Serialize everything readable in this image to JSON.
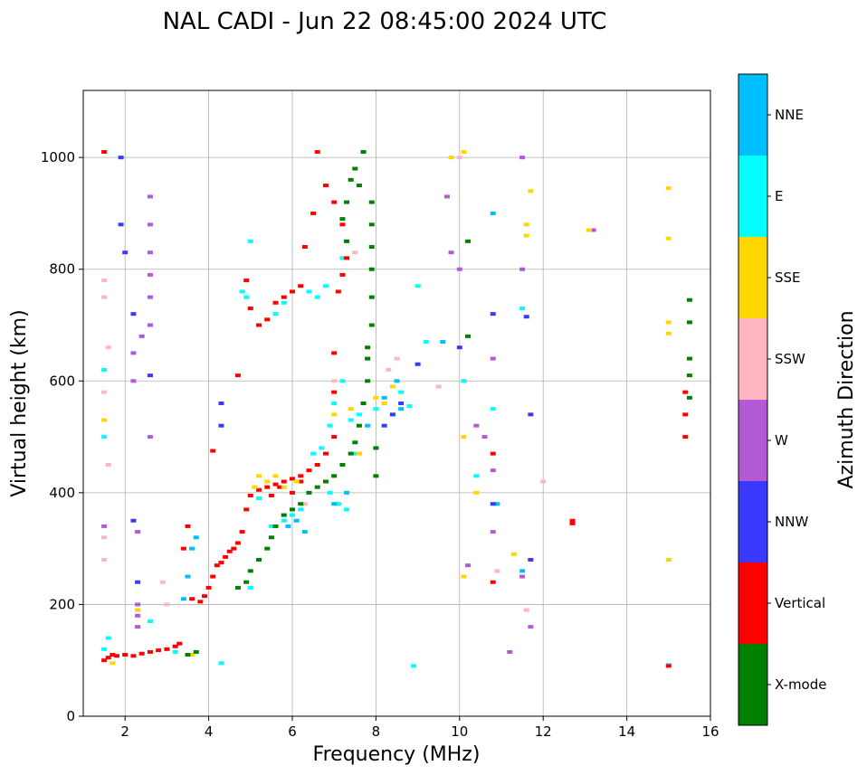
{
  "chart_data": {
    "type": "scatter",
    "title": "NAL CADI - Jun 22 08:45:00 2024 UTC",
    "xlabel": "Frequency (MHz)",
    "ylabel": "Virtual height (km)",
    "xlim": [
      1,
      16
    ],
    "ylim": [
      0,
      1120
    ],
    "xticks": [
      2,
      4,
      6,
      8,
      10,
      12,
      14,
      16
    ],
    "yticks": [
      0,
      200,
      400,
      600,
      800,
      1000
    ],
    "grid": true,
    "colorbar": {
      "label": "Azimuth Direction",
      "categories": [
        {
          "name": "X-mode",
          "color": "#008000"
        },
        {
          "name": "Vertical",
          "color": "#ff0000"
        },
        {
          "name": "NNW",
          "color": "#3a3aff"
        },
        {
          "name": "W",
          "color": "#b45ad6"
        },
        {
          "name": "SSW",
          "color": "#ffb6c1"
        },
        {
          "name": "SSE",
          "color": "#ffd700"
        },
        {
          "name": "E",
          "color": "#00ffff"
        },
        {
          "name": "NNE",
          "color": "#00bfff"
        }
      ]
    },
    "series": [
      {
        "name": "E",
        "points": [
          [
            1.5,
            120
          ],
          [
            1.5,
            500
          ],
          [
            1.5,
            620
          ],
          [
            1.6,
            140
          ],
          [
            2.6,
            170
          ],
          [
            3.2,
            115
          ],
          [
            4.3,
            95
          ],
          [
            5.0,
            230
          ],
          [
            5.2,
            390
          ],
          [
            5.5,
            340
          ],
          [
            5.8,
            350
          ],
          [
            6.0,
            360
          ],
          [
            6.2,
            370
          ],
          [
            6.5,
            470
          ],
          [
            6.7,
            480
          ],
          [
            6.9,
            520
          ],
          [
            7.0,
            560
          ],
          [
            7.2,
            600
          ],
          [
            7.4,
            530
          ],
          [
            7.5,
            470
          ],
          [
            7.6,
            540
          ],
          [
            7.8,
            640
          ],
          [
            8.0,
            550
          ],
          [
            8.2,
            560
          ],
          [
            8.4,
            540
          ],
          [
            8.6,
            580
          ],
          [
            8.8,
            555
          ],
          [
            9.0,
            770
          ],
          [
            9.2,
            670
          ],
          [
            10.1,
            600
          ],
          [
            10.4,
            430
          ],
          [
            10.8,
            550
          ],
          [
            11.5,
            730
          ],
          [
            6.4,
            760
          ],
          [
            6.6,
            750
          ],
          [
            6.8,
            770
          ],
          [
            7.2,
            820
          ],
          [
            4.8,
            760
          ],
          [
            4.9,
            750
          ],
          [
            5.0,
            850
          ],
          [
            5.6,
            720
          ],
          [
            5.8,
            740
          ],
          [
            7.3,
            370
          ],
          [
            7.1,
            380
          ],
          [
            6.9,
            400
          ],
          [
            8.9,
            90
          ],
          [
            15.0,
            92
          ]
        ]
      },
      {
        "name": "NNE",
        "points": [
          [
            3.4,
            210
          ],
          [
            3.5,
            250
          ],
          [
            3.6,
            300
          ],
          [
            3.7,
            320
          ],
          [
            5.9,
            340
          ],
          [
            6.1,
            350
          ],
          [
            6.3,
            330
          ],
          [
            7.0,
            380
          ],
          [
            7.3,
            400
          ],
          [
            7.8,
            520
          ],
          [
            8.2,
            570
          ],
          [
            8.5,
            600
          ],
          [
            8.6,
            550
          ],
          [
            9.6,
            670
          ],
          [
            10.8,
            900
          ],
          [
            10.9,
            380
          ],
          [
            11.5,
            260
          ]
        ]
      },
      {
        "name": "Vertical",
        "points": [
          [
            1.5,
            100
          ],
          [
            1.6,
            105
          ],
          [
            1.7,
            110
          ],
          [
            1.8,
            108
          ],
          [
            2.0,
            110
          ],
          [
            2.2,
            108
          ],
          [
            2.4,
            112
          ],
          [
            2.6,
            115
          ],
          [
            2.8,
            118
          ],
          [
            3.0,
            120
          ],
          [
            3.2,
            125
          ],
          [
            3.3,
            130
          ],
          [
            3.4,
            300
          ],
          [
            3.5,
            340
          ],
          [
            3.6,
            210
          ],
          [
            3.8,
            205
          ],
          [
            3.9,
            215
          ],
          [
            4.0,
            230
          ],
          [
            4.1,
            250
          ],
          [
            4.2,
            270
          ],
          [
            4.3,
            275
          ],
          [
            4.4,
            285
          ],
          [
            4.5,
            295
          ],
          [
            4.6,
            300
          ],
          [
            4.7,
            310
          ],
          [
            4.8,
            330
          ],
          [
            4.9,
            370
          ],
          [
            5.0,
            395
          ],
          [
            5.2,
            405
          ],
          [
            5.4,
            410
          ],
          [
            5.6,
            415
          ],
          [
            5.8,
            420
          ],
          [
            6.0,
            425
          ],
          [
            6.2,
            430
          ],
          [
            6.4,
            440
          ],
          [
            6.6,
            450
          ],
          [
            6.8,
            470
          ],
          [
            7.0,
            500
          ],
          [
            7.0,
            580
          ],
          [
            7.0,
            650
          ],
          [
            7.1,
            760
          ],
          [
            7.2,
            790
          ],
          [
            7.3,
            820
          ],
          [
            7.2,
            880
          ],
          [
            7.0,
            920
          ],
          [
            6.8,
            950
          ],
          [
            6.6,
            1010
          ],
          [
            6.5,
            900
          ],
          [
            6.3,
            840
          ],
          [
            6.2,
            770
          ],
          [
            6.0,
            760
          ],
          [
            5.8,
            750
          ],
          [
            5.6,
            740
          ],
          [
            5.4,
            710
          ],
          [
            5.2,
            700
          ],
          [
            5.0,
            730
          ],
          [
            4.9,
            780
          ],
          [
            4.7,
            610
          ],
          [
            4.1,
            475
          ],
          [
            1.5,
            1010
          ],
          [
            6.0,
            400
          ],
          [
            6.2,
            420
          ],
          [
            5.7,
            410
          ],
          [
            5.5,
            395
          ],
          [
            10.8,
            470
          ],
          [
            10.8,
            240
          ],
          [
            12.7,
            350
          ],
          [
            12.7,
            345
          ],
          [
            15.0,
            90
          ],
          [
            15.4,
            500
          ],
          [
            15.4,
            540
          ],
          [
            15.4,
            580
          ]
        ]
      },
      {
        "name": "NNW",
        "points": [
          [
            1.9,
            1000
          ],
          [
            1.9,
            880
          ],
          [
            2.0,
            830
          ],
          [
            2.2,
            720
          ],
          [
            2.6,
            610
          ],
          [
            4.3,
            560
          ],
          [
            4.3,
            520
          ],
          [
            8.2,
            520
          ],
          [
            8.4,
            540
          ],
          [
            8.6,
            560
          ],
          [
            9.0,
            630
          ],
          [
            10.0,
            660
          ],
          [
            10.8,
            720
          ],
          [
            10.8,
            380
          ],
          [
            11.6,
            715
          ],
          [
            11.7,
            540
          ],
          [
            11.7,
            280
          ],
          [
            2.2,
            350
          ],
          [
            2.3,
            240
          ]
        ]
      },
      {
        "name": "W",
        "points": [
          [
            2.3,
            200
          ],
          [
            2.3,
            180
          ],
          [
            2.3,
            160
          ],
          [
            2.3,
            330
          ],
          [
            2.6,
            930
          ],
          [
            2.6,
            880
          ],
          [
            2.6,
            830
          ],
          [
            2.6,
            790
          ],
          [
            2.6,
            750
          ],
          [
            2.6,
            700
          ],
          [
            2.6,
            500
          ],
          [
            2.2,
            600
          ],
          [
            2.2,
            650
          ],
          [
            2.4,
            680
          ],
          [
            1.5,
            340
          ],
          [
            10.4,
            520
          ],
          [
            10.6,
            500
          ],
          [
            10.8,
            640
          ],
          [
            10.8,
            440
          ],
          [
            10.8,
            330
          ],
          [
            11.5,
            1000
          ],
          [
            11.5,
            800
          ],
          [
            11.5,
            250
          ],
          [
            11.7,
            160
          ],
          [
            10.2,
            270
          ],
          [
            9.7,
            930
          ],
          [
            9.8,
            830
          ],
          [
            10.0,
            800
          ],
          [
            11.2,
            115
          ],
          [
            13.2,
            870
          ]
        ]
      },
      {
        "name": "SSW",
        "points": [
          [
            1.5,
            780
          ],
          [
            1.5,
            750
          ],
          [
            1.5,
            580
          ],
          [
            1.5,
            320
          ],
          [
            1.5,
            280
          ],
          [
            1.6,
            450
          ],
          [
            1.6,
            660
          ],
          [
            2.9,
            240
          ],
          [
            3.0,
            200
          ],
          [
            8.3,
            620
          ],
          [
            8.5,
            640
          ],
          [
            9.5,
            590
          ],
          [
            10.0,
            1000
          ],
          [
            10.9,
            260
          ],
          [
            12.0,
            420
          ],
          [
            11.6,
            190
          ],
          [
            7.0,
            600
          ],
          [
            6.3,
            380
          ],
          [
            7.5,
            830
          ]
        ]
      },
      {
        "name": "SSE",
        "points": [
          [
            1.5,
            530
          ],
          [
            1.7,
            95
          ],
          [
            2.3,
            190
          ],
          [
            3.6,
            110
          ],
          [
            5.1,
            410
          ],
          [
            5.2,
            430
          ],
          [
            5.4,
            420
          ],
          [
            5.6,
            430
          ],
          [
            5.8,
            410
          ],
          [
            6.1,
            420
          ],
          [
            7.0,
            540
          ],
          [
            7.4,
            550
          ],
          [
            7.6,
            470
          ],
          [
            8.0,
            570
          ],
          [
            8.2,
            560
          ],
          [
            8.4,
            590
          ],
          [
            9.8,
            1000
          ],
          [
            10.1,
            1010
          ],
          [
            10.1,
            500
          ],
          [
            10.1,
            250
          ],
          [
            10.4,
            400
          ],
          [
            11.3,
            290
          ],
          [
            11.7,
            940
          ],
          [
            11.6,
            860
          ],
          [
            11.6,
            880
          ],
          [
            13.1,
            870
          ],
          [
            15.0,
            945
          ],
          [
            15.0,
            855
          ],
          [
            15.0,
            705
          ],
          [
            15.0,
            685
          ],
          [
            15.0,
            280
          ]
        ]
      },
      {
        "name": "X-mode",
        "points": [
          [
            3.5,
            110
          ],
          [
            3.7,
            115
          ],
          [
            4.7,
            230
          ],
          [
            4.9,
            240
          ],
          [
            5.0,
            260
          ],
          [
            5.2,
            280
          ],
          [
            5.4,
            300
          ],
          [
            5.5,
            320
          ],
          [
            5.6,
            340
          ],
          [
            5.8,
            360
          ],
          [
            6.0,
            370
          ],
          [
            6.2,
            380
          ],
          [
            6.4,
            400
          ],
          [
            6.6,
            410
          ],
          [
            6.8,
            420
          ],
          [
            7.0,
            430
          ],
          [
            7.2,
            450
          ],
          [
            7.4,
            470
          ],
          [
            7.5,
            490
          ],
          [
            7.6,
            520
          ],
          [
            7.7,
            560
          ],
          [
            7.8,
            600
          ],
          [
            7.8,
            640
          ],
          [
            7.8,
            660
          ],
          [
            7.9,
            700
          ],
          [
            7.9,
            750
          ],
          [
            7.9,
            800
          ],
          [
            7.9,
            840
          ],
          [
            7.9,
            880
          ],
          [
            7.9,
            920
          ],
          [
            7.6,
            950
          ],
          [
            7.5,
            980
          ],
          [
            7.7,
            1010
          ],
          [
            7.4,
            960
          ],
          [
            7.3,
            920
          ],
          [
            7.2,
            890
          ],
          [
            7.3,
            850
          ],
          [
            8.0,
            430
          ],
          [
            8.0,
            480
          ],
          [
            10.2,
            850
          ],
          [
            10.2,
            680
          ],
          [
            15.5,
            745
          ],
          [
            15.5,
            705
          ],
          [
            15.5,
            640
          ],
          [
            15.5,
            610
          ],
          [
            15.5,
            570
          ]
        ]
      }
    ]
  }
}
